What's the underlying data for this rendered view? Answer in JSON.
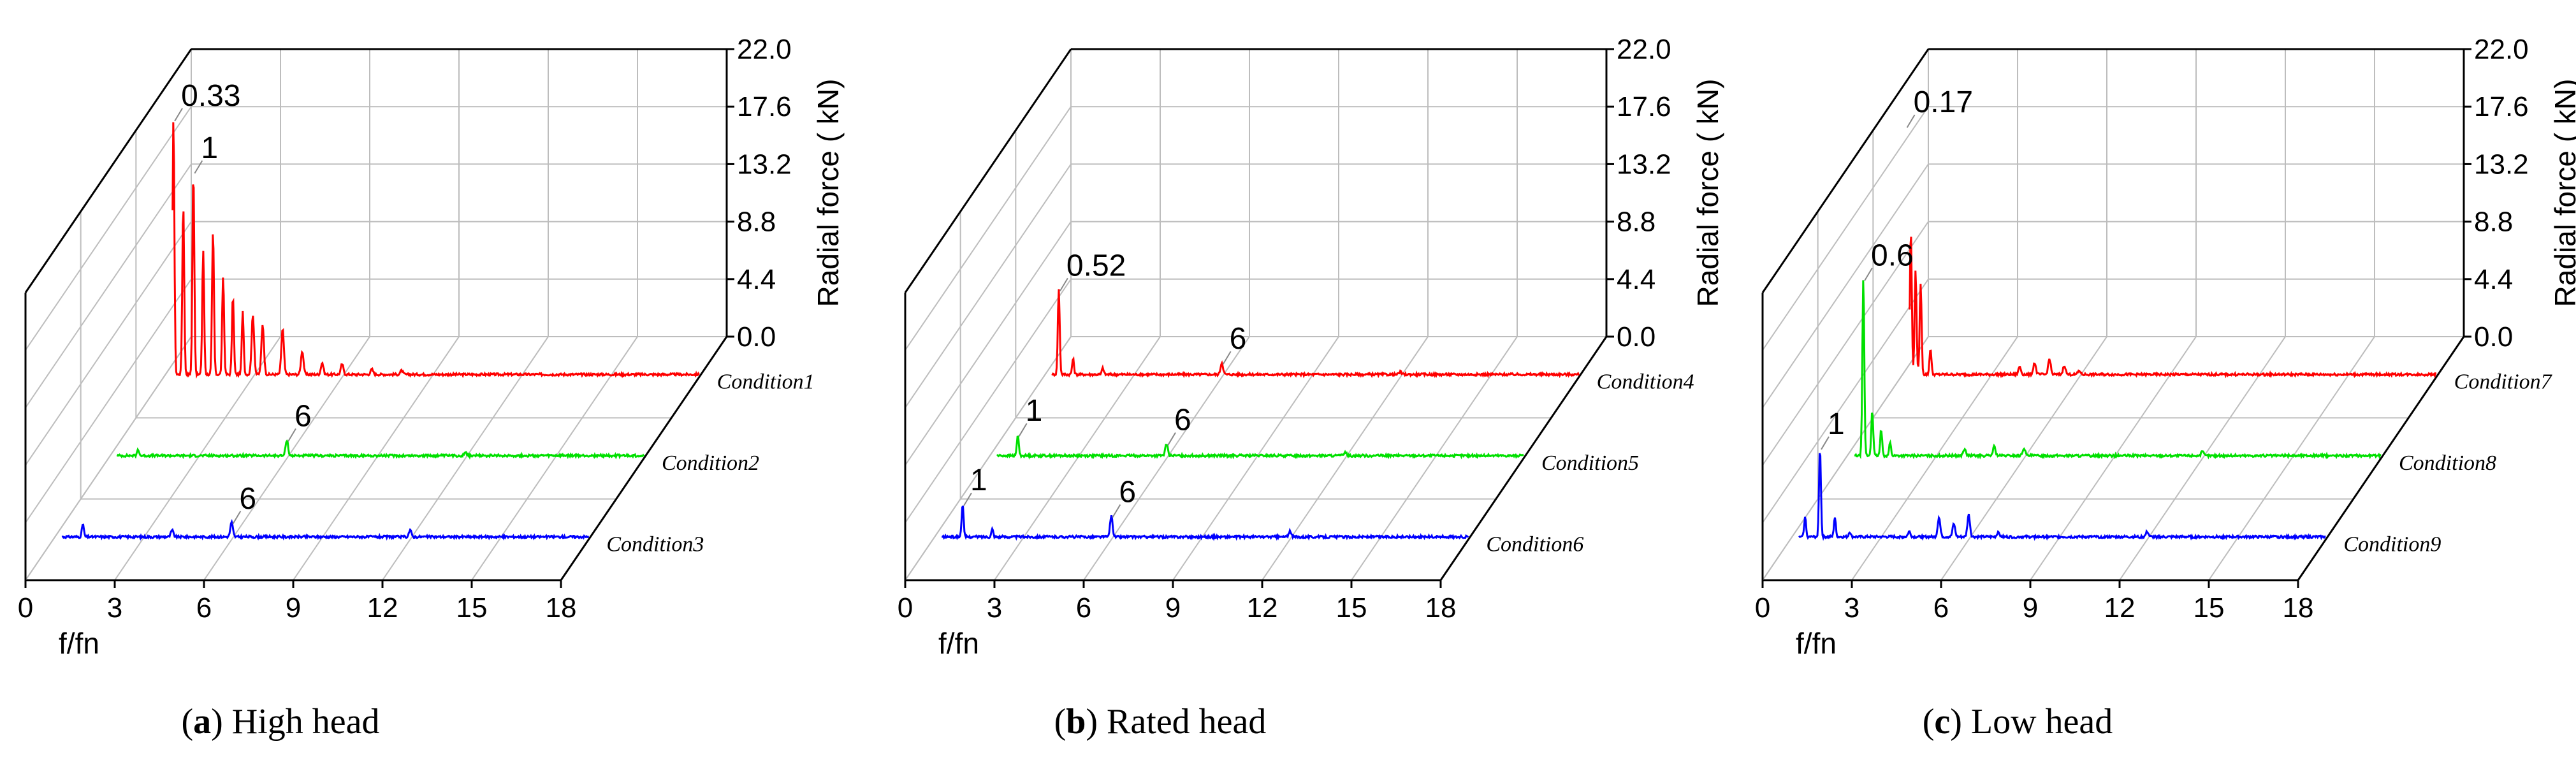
{
  "chart_data": [
    {
      "type": "line",
      "subtype": "3d-waterfall",
      "caption_letter": "a",
      "caption_text": "High head",
      "xlabel": "f/fn",
      "ylabel": "Radial force ( kN)",
      "xlim": [
        0,
        18
      ],
      "xticks": [
        "0",
        "3",
        "6",
        "9",
        "12",
        "15",
        "18"
      ],
      "zlim": [
        0,
        22
      ],
      "zticks": [
        "0.0",
        "4.4",
        "8.8",
        "13.2",
        "17.6",
        "22.0"
      ],
      "colors": [
        "#ff0000",
        "#00e000",
        "#0000ff"
      ],
      "series": [
        {
          "name": "Condition1",
          "peaks": [
            [
              0.33,
              19.5
            ],
            [
              0.66,
              13.0
            ],
            [
              1.0,
              15.5
            ],
            [
              1.33,
              9.5
            ],
            [
              1.66,
              11.0
            ],
            [
              2.0,
              7.5
            ],
            [
              2.33,
              6.0
            ],
            [
              2.66,
              4.8
            ],
            [
              3.0,
              4.5
            ],
            [
              3.33,
              3.8
            ],
            [
              4.0,
              3.5
            ],
            [
              4.66,
              1.8
            ],
            [
              5.33,
              0.9
            ],
            [
              6.0,
              0.8
            ],
            [
              7.0,
              0.4
            ],
            [
              8.0,
              0.3
            ]
          ],
          "annotations": [
            {
              "text": "0.33",
              "x": 0.33,
              "z": 19.5
            },
            {
              "text": "1",
              "x": 1.0,
              "z": 15.5
            }
          ]
        },
        {
          "name": "Condition2",
          "peaks": [
            [
              1.0,
              0.5
            ],
            [
              6.0,
              1.2
            ],
            [
              12.0,
              0.3
            ]
          ],
          "annotations": [
            {
              "text": "6",
              "x": 6.0,
              "z": 1.2
            }
          ]
        },
        {
          "name": "Condition3",
          "peaks": [
            [
              1.0,
              1.0
            ],
            [
              4.0,
              0.5
            ],
            [
              6.0,
              1.1
            ],
            [
              12.0,
              0.5
            ]
          ],
          "annotations": [
            {
              "text": "6",
              "x": 6.0,
              "z": 1.1
            }
          ]
        }
      ]
    },
    {
      "type": "line",
      "subtype": "3d-waterfall",
      "caption_letter": "b",
      "caption_text": "Rated head",
      "xlabel": "f/fn",
      "ylabel": "Radial force ( kN)",
      "xlim": [
        0,
        18
      ],
      "xticks": [
        "0",
        "3",
        "6",
        "9",
        "12",
        "15",
        "18"
      ],
      "zlim": [
        0,
        22
      ],
      "zticks": [
        "0.0",
        "4.4",
        "8.8",
        "13.2",
        "17.6",
        "22.0"
      ],
      "colors": [
        "#ff0000",
        "#00e000",
        "#0000ff"
      ],
      "series": [
        {
          "name": "Condition4",
          "peaks": [
            [
              0.52,
              6.5
            ],
            [
              1.0,
              1.2
            ],
            [
              2.0,
              0.5
            ],
            [
              6.0,
              0.9
            ],
            [
              12.0,
              0.2
            ]
          ],
          "annotations": [
            {
              "text": "0.52",
              "x": 0.52,
              "z": 6.5
            },
            {
              "text": "6",
              "x": 6.0,
              "z": 0.9
            }
          ]
        },
        {
          "name": "Condition5",
          "peaks": [
            [
              1.0,
              1.6
            ],
            [
              6.0,
              0.9
            ],
            [
              12.0,
              0.3
            ]
          ],
          "annotations": [
            {
              "text": "1",
              "x": 1.0,
              "z": 1.6
            },
            {
              "text": "6",
              "x": 6.0,
              "z": 0.9
            }
          ]
        },
        {
          "name": "Condition6",
          "peaks": [
            [
              1.0,
              2.5
            ],
            [
              2.0,
              0.6
            ],
            [
              6.0,
              1.6
            ],
            [
              12.0,
              0.4
            ]
          ],
          "annotations": [
            {
              "text": "1",
              "x": 1.0,
              "z": 2.5
            },
            {
              "text": "6",
              "x": 6.0,
              "z": 1.6
            }
          ]
        }
      ]
    },
    {
      "type": "line",
      "subtype": "3d-waterfall",
      "caption_letter": "c",
      "caption_text": "Low head",
      "xlabel": "f/fn",
      "ylabel": "Radial force ( kN)",
      "xlim": [
        0,
        18
      ],
      "xticks": [
        "0",
        "3",
        "6",
        "9",
        "12",
        "15",
        "18"
      ],
      "zlim": [
        0,
        22
      ],
      "zticks": [
        "0.0",
        "4.4",
        "8.8",
        "13.2",
        "17.6",
        "22.0"
      ],
      "colors": [
        "#ff0000",
        "#00e000",
        "#0000ff"
      ],
      "series": [
        {
          "name": "Condition7",
          "peaks": [
            [
              0.17,
              19.0
            ],
            [
              0.34,
              11.0
            ],
            [
              0.5,
              8.0
            ],
            [
              0.67,
              7.0
            ],
            [
              1.0,
              2.0
            ],
            [
              4.0,
              0.6
            ],
            [
              4.5,
              0.9
            ],
            [
              5.0,
              1.2
            ],
            [
              5.5,
              0.7
            ],
            [
              6.0,
              0.3
            ]
          ],
          "annotations": [
            {
              "text": "0.17",
              "x": 0.17,
              "z": 19.0
            }
          ]
        },
        {
          "name": "Condition8",
          "peaks": [
            [
              0.6,
              13.5
            ],
            [
              0.9,
              3.5
            ],
            [
              1.2,
              2.0
            ],
            [
              1.5,
              1.0
            ],
            [
              4.0,
              0.5
            ],
            [
              5.0,
              0.7
            ],
            [
              6.0,
              0.6
            ],
            [
              12.0,
              0.3
            ]
          ],
          "annotations": [
            {
              "text": "0.6",
              "x": 0.6,
              "z": 13.5
            }
          ]
        },
        {
          "name": "Condition9",
          "peaks": [
            [
              0.5,
              1.5
            ],
            [
              1.0,
              6.8
            ],
            [
              1.5,
              1.5
            ],
            [
              2.0,
              0.4
            ],
            [
              4.0,
              0.4
            ],
            [
              5.0,
              1.5
            ],
            [
              5.5,
              1.0
            ],
            [
              6.0,
              1.7
            ],
            [
              7.0,
              0.4
            ],
            [
              12.0,
              0.4
            ]
          ],
          "annotations": [
            {
              "text": "1",
              "x": 1.0,
              "z": 6.8
            }
          ]
        }
      ]
    }
  ]
}
